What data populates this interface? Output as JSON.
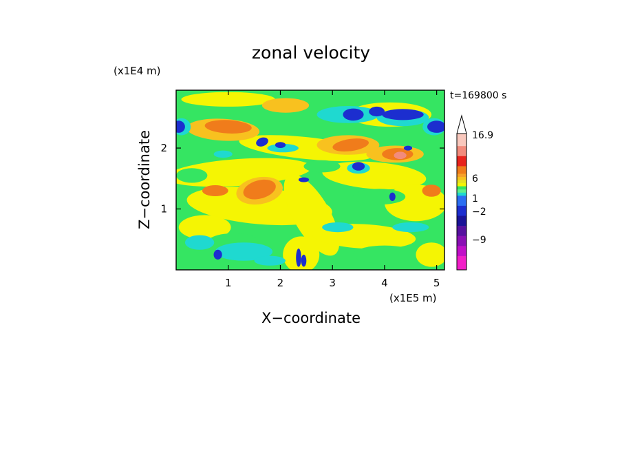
{
  "chart_data": {
    "type": "heatmap",
    "title": "zonal velocity",
    "xlabel": "X−coordinate",
    "ylabel": "Z−coordinate",
    "x_unit": "(x1E5 m)",
    "y_unit": "(x1E4 m)",
    "time_label": "t=169800 s",
    "x_ticks": [
      "1",
      "2",
      "3",
      "4",
      "5"
    ],
    "x_tick_values": [
      1,
      2,
      3,
      4,
      5
    ],
    "y_ticks": [
      "1",
      "2"
    ],
    "y_tick_values": [
      1,
      2
    ],
    "xlim": [
      0,
      5.15
    ],
    "ylim": [
      0,
      2.95
    ],
    "colorbar": {
      "labels": [
        "16.9",
        "6",
        "1",
        "−2",
        "−9"
      ],
      "colors_top_to_bottom": [
        "#f9c8bd",
        "#f28b7c",
        "#e8231c",
        "#f07c1b",
        "#f7a12a",
        "#f8c11f",
        "#e8e21e",
        "#f5f503",
        "#35e562",
        "#5ef08c",
        "#1fd9d0",
        "#2b6ef2",
        "#1c2ecf",
        "#1a1397",
        "#56119f",
        "#8a0fb4",
        "#c10fc8",
        "#f21fc8"
      ],
      "extends_top": true
    },
    "contour_fields": [
      {
        "name": "strong positive (orange)",
        "color": "#f07c1b",
        "approx_regions": [
          [
            0.9,
            2.3
          ],
          [
            1.5,
            1.3
          ],
          [
            3.2,
            2.05
          ],
          [
            4.2,
            1.9
          ],
          [
            0.7,
            1.3
          ]
        ]
      },
      {
        "name": "positive (yellow)",
        "color": "#f5f503",
        "approx_regions": [
          [
            2.6,
            1.0
          ],
          [
            2.4,
            0.3
          ],
          [
            4.8,
            1.1
          ],
          [
            1.8,
            0.75
          ]
        ]
      },
      {
        "name": "near zero (green)",
        "color": "#35e562",
        "approx_regions": [
          [
            0.3,
            1.6
          ],
          [
            3.9,
            1.2
          ],
          [
            2.0,
            2.8
          ]
        ]
      },
      {
        "name": "negative (cyan)",
        "color": "#1fd9d0",
        "approx_regions": [
          [
            1.3,
            0.3
          ],
          [
            0.4,
            0.5
          ],
          [
            2.1,
            2.0
          ]
        ]
      },
      {
        "name": "strong negative (blue)",
        "color": "#1c2ecf",
        "approx_regions": [
          [
            3.4,
            2.55
          ],
          [
            4.3,
            2.55
          ],
          [
            0.05,
            2.35
          ],
          [
            1.6,
            2.1
          ],
          [
            3.5,
            1.7
          ],
          [
            5.0,
            2.35
          ]
        ]
      }
    ]
  }
}
